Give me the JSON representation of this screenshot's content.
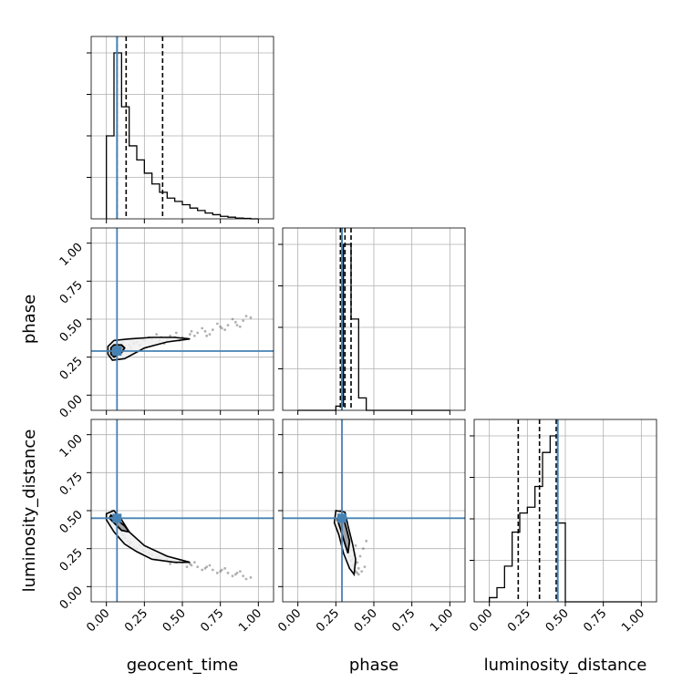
{
  "chart_data": {
    "type": "corner",
    "parameters": [
      "geocent_time",
      "phase",
      "luminosity_distance"
    ],
    "axis_range": [
      -0.1,
      1.1
    ],
    "tick_labels": [
      "0.00",
      "0.25",
      "0.50",
      "0.75",
      "1.00"
    ],
    "grid": true,
    "truth": {
      "color": "#4682b4",
      "values": {
        "geocent_time": 0.07,
        "phase": 0.29,
        "luminosity_distance": 0.45
      }
    },
    "histograms": {
      "geocent_time": {
        "bin_width": 0.05,
        "start": 0.0,
        "heights": [
          1.0,
          2.0,
          1.35,
          0.88,
          0.71,
          0.55,
          0.42,
          0.32,
          0.25,
          0.21,
          0.17,
          0.13,
          0.1,
          0.07,
          0.05,
          0.03,
          0.02,
          0.01,
          0.005,
          0.0
        ],
        "quantiles": [
          0.07,
          0.13,
          0.37
        ]
      },
      "phase": {
        "bin_width": 0.05,
        "start": 0.0,
        "heights": [
          0.0,
          0.0,
          0.0,
          0.0,
          0.0,
          0.05,
          2.0,
          1.1,
          0.15,
          0.0,
          0.0,
          0.0,
          0.0,
          0.0,
          0.0,
          0.0,
          0.0,
          0.0,
          0.0,
          0.0
        ],
        "quantiles": [
          0.28,
          0.31,
          0.35
        ]
      },
      "luminosity_distance": {
        "bin_width": 0.05,
        "start": 0.0,
        "heights": [
          0.05,
          0.17,
          0.43,
          0.84,
          1.07,
          1.14,
          1.39,
          1.8,
          2.0,
          0.95,
          0.0,
          0.0,
          0.0,
          0.0,
          0.0,
          0.0,
          0.0,
          0.0,
          0.0,
          0.0
        ],
        "quantiles": [
          0.19,
          0.33,
          0.44
        ]
      }
    },
    "scatter": {
      "phase_vs_geocent_time": {
        "x": [
          0.02,
          0.05,
          0.08,
          0.1,
          0.12,
          0.15,
          0.18,
          0.2,
          0.25,
          0.3,
          0.35,
          0.4,
          0.45,
          0.5,
          0.55,
          0.6,
          0.65,
          0.7,
          0.75,
          0.8,
          0.85,
          0.9,
          0.95,
          0.06,
          0.09,
          0.14,
          0.22,
          0.28,
          0.33,
          0.38,
          0.42,
          0.48,
          0.53,
          0.58,
          0.63,
          0.68,
          0.73,
          0.78,
          0.83,
          0.88,
          0.04,
          0.07,
          0.11,
          0.16,
          0.24,
          0.36,
          0.46,
          0.56,
          0.66,
          0.76,
          0.86,
          0.92
        ],
        "y": [
          0.29,
          0.3,
          0.29,
          0.31,
          0.32,
          0.33,
          0.34,
          0.35,
          0.36,
          0.37,
          0.36,
          0.37,
          0.38,
          0.38,
          0.4,
          0.41,
          0.42,
          0.43,
          0.45,
          0.46,
          0.48,
          0.49,
          0.51,
          0.27,
          0.26,
          0.3,
          0.33,
          0.38,
          0.4,
          0.34,
          0.39,
          0.36,
          0.37,
          0.39,
          0.44,
          0.4,
          0.47,
          0.43,
          0.5,
          0.45,
          0.32,
          0.28,
          0.35,
          0.31,
          0.37,
          0.38,
          0.41,
          0.42,
          0.39,
          0.44,
          0.46,
          0.52
        ]
      },
      "luminosity_distance_vs_geocent_time": {
        "x": [
          0.02,
          0.05,
          0.08,
          0.1,
          0.12,
          0.15,
          0.18,
          0.2,
          0.25,
          0.3,
          0.35,
          0.4,
          0.45,
          0.5,
          0.55,
          0.6,
          0.65,
          0.7,
          0.75,
          0.8,
          0.85,
          0.9,
          0.95,
          0.06,
          0.09,
          0.14,
          0.22,
          0.28,
          0.33,
          0.38,
          0.42,
          0.48,
          0.53,
          0.58,
          0.63,
          0.68,
          0.73,
          0.78,
          0.83,
          0.88,
          0.04,
          0.07,
          0.11,
          0.16,
          0.24,
          0.36,
          0.46,
          0.56,
          0.66,
          0.76,
          0.86,
          0.92
        ],
        "y": [
          0.46,
          0.44,
          0.4,
          0.36,
          0.32,
          0.28,
          0.26,
          0.25,
          0.23,
          0.21,
          0.2,
          0.18,
          0.17,
          0.16,
          0.15,
          0.13,
          0.12,
          0.11,
          0.1,
          0.09,
          0.08,
          0.07,
          0.06,
          0.48,
          0.38,
          0.3,
          0.27,
          0.22,
          0.19,
          0.2,
          0.15,
          0.17,
          0.13,
          0.16,
          0.11,
          0.14,
          0.09,
          0.12,
          0.07,
          0.1,
          0.5,
          0.42,
          0.34,
          0.29,
          0.24,
          0.18,
          0.16,
          0.14,
          0.13,
          0.11,
          0.09,
          0.05
        ]
      },
      "luminosity_distance_vs_phase": {
        "x": [
          0.27,
          0.28,
          0.29,
          0.3,
          0.31,
          0.32,
          0.33,
          0.34,
          0.35,
          0.36,
          0.37,
          0.38,
          0.39,
          0.4,
          0.42,
          0.44,
          0.28,
          0.3,
          0.32,
          0.34,
          0.36,
          0.38,
          0.4,
          0.41,
          0.43,
          0.29,
          0.31,
          0.33,
          0.35,
          0.37,
          0.39,
          0.45,
          0.26,
          0.3,
          0.34,
          0.38
        ],
        "y": [
          0.45,
          0.42,
          0.38,
          0.34,
          0.3,
          0.26,
          0.22,
          0.2,
          0.17,
          0.14,
          0.12,
          0.1,
          0.09,
          0.08,
          0.1,
          0.13,
          0.5,
          0.46,
          0.36,
          0.28,
          0.18,
          0.15,
          0.12,
          0.2,
          0.25,
          0.47,
          0.4,
          0.32,
          0.24,
          0.21,
          0.16,
          0.3,
          0.44,
          0.39,
          0.35,
          0.27
        ]
      }
    },
    "contours": {
      "phase_vs_geocent_time": {
        "inner": [
          [
            0.03,
            0.27
          ],
          [
            0.05,
            0.25
          ],
          [
            0.1,
            0.28
          ],
          [
            0.12,
            0.31
          ],
          [
            0.1,
            0.33
          ],
          [
            0.05,
            0.33
          ],
          [
            0.03,
            0.31
          ]
        ],
        "outer": [
          [
            0.01,
            0.27
          ],
          [
            0.04,
            0.23
          ],
          [
            0.12,
            0.24
          ],
          [
            0.25,
            0.31
          ],
          [
            0.4,
            0.35
          ],
          [
            0.55,
            0.37
          ],
          [
            0.45,
            0.38
          ],
          [
            0.3,
            0.38
          ],
          [
            0.15,
            0.37
          ],
          [
            0.05,
            0.36
          ],
          [
            0.01,
            0.32
          ]
        ]
      },
      "luminosity_distance_vs_geocent_time": {
        "inner": [
          [
            0.03,
            0.47
          ],
          [
            0.07,
            0.44
          ],
          [
            0.12,
            0.4
          ],
          [
            0.15,
            0.36
          ],
          [
            0.1,
            0.37
          ],
          [
            0.05,
            0.42
          ],
          [
            0.02,
            0.45
          ]
        ],
        "outer": [
          [
            0.0,
            0.48
          ],
          [
            0.05,
            0.5
          ],
          [
            0.1,
            0.44
          ],
          [
            0.15,
            0.36
          ],
          [
            0.25,
            0.27
          ],
          [
            0.4,
            0.2
          ],
          [
            0.55,
            0.16
          ],
          [
            0.45,
            0.16
          ],
          [
            0.3,
            0.18
          ],
          [
            0.2,
            0.23
          ],
          [
            0.12,
            0.28
          ],
          [
            0.05,
            0.36
          ],
          [
            0.0,
            0.44
          ]
        ]
      },
      "luminosity_distance_vs_phase": {
        "inner": [
          [
            0.27,
            0.47
          ],
          [
            0.3,
            0.45
          ],
          [
            0.32,
            0.38
          ],
          [
            0.34,
            0.3
          ],
          [
            0.33,
            0.22
          ],
          [
            0.31,
            0.28
          ],
          [
            0.28,
            0.38
          ],
          [
            0.26,
            0.44
          ]
        ],
        "outer": [
          [
            0.25,
            0.5
          ],
          [
            0.31,
            0.49
          ],
          [
            0.33,
            0.4
          ],
          [
            0.36,
            0.28
          ],
          [
            0.38,
            0.18
          ],
          [
            0.37,
            0.08
          ],
          [
            0.34,
            0.12
          ],
          [
            0.3,
            0.22
          ],
          [
            0.27,
            0.34
          ],
          [
            0.24,
            0.42
          ]
        ]
      }
    }
  }
}
